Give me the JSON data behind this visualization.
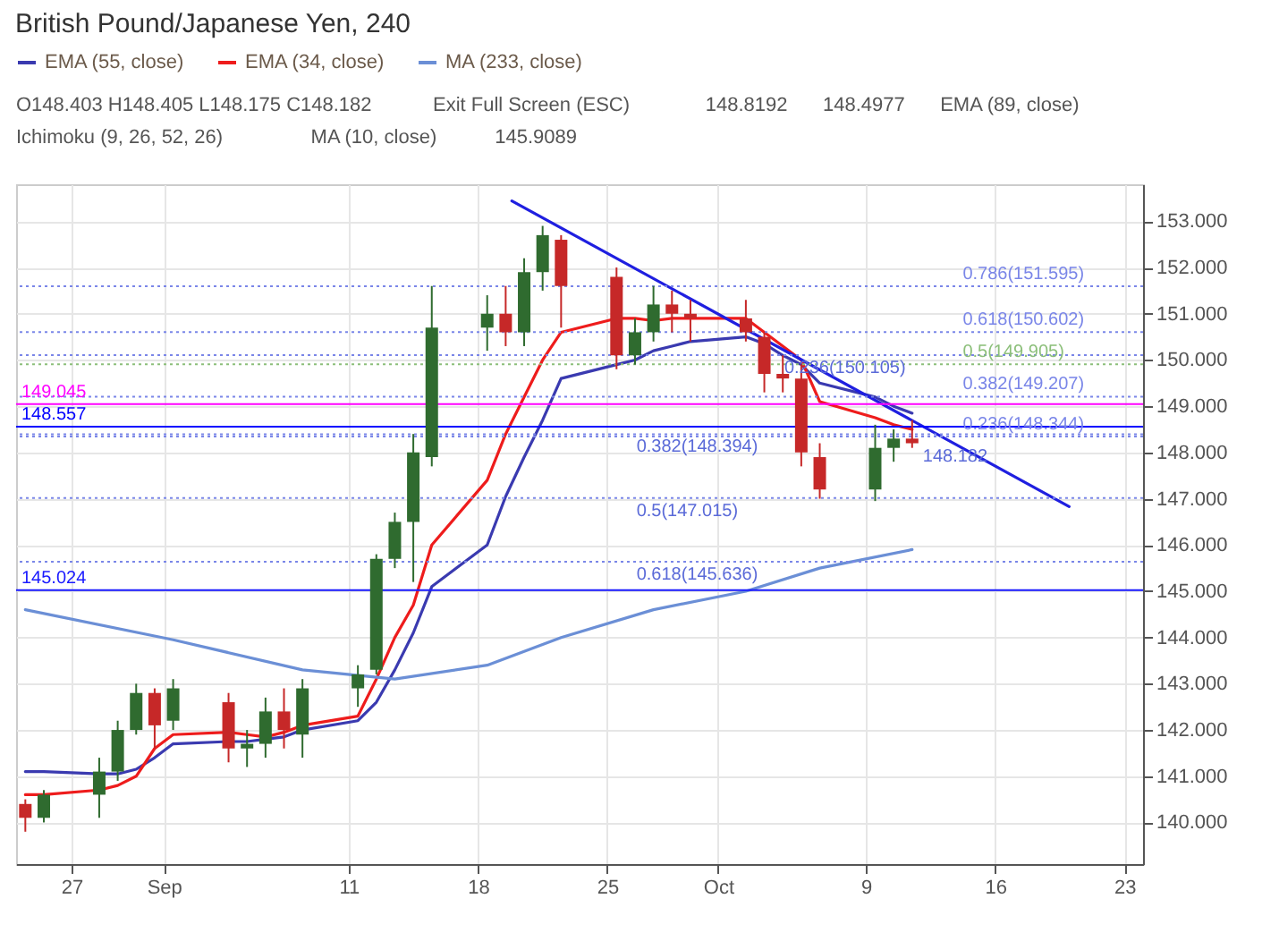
{
  "chart_data": {
    "type": "candlestick",
    "title": "British Pound/Japanese Yen, 240",
    "x": [
      "--08-24T12:00",
      "--08-25T12:00",
      "--08-28T12:00",
      "--08-29T12:00",
      "--08-30T12:00",
      "--08-31T12:00",
      "--09-01T12:00",
      "--09-04T12:00",
      "--09-05T12:00",
      "--09-06T12:00",
      "--09-07T12:00",
      "--09-08T12:00",
      "--09-11T12:00",
      "--09-12T12:00",
      "--09-13T12:00",
      "--09-14T12:00",
      "--09-15T12:00",
      "--09-18T12:00",
      "--09-19T12:00",
      "--09-20T12:00",
      "--09-21T12:00",
      "--09-22T12:00",
      "--09-25T12:00",
      "--09-26T12:00",
      "--09-27T12:00",
      "--09-28T12:00",
      "--09-29T12:00",
      "--10-02T12:00",
      "--10-03T12:00",
      "--10-04T12:00",
      "--10-05T12:00",
      "--10-06T12:00",
      "--10-09T12:00",
      "--10-10T12:00",
      "--10-11T12:00"
    ],
    "ohlc": [
      [
        140.4,
        140.5,
        139.8,
        140.1
      ],
      [
        140.1,
        140.7,
        140.0,
        140.6
      ],
      [
        140.6,
        141.4,
        140.1,
        141.1
      ],
      [
        141.1,
        142.2,
        140.9,
        142.0
      ],
      [
        142.0,
        143.0,
        141.9,
        142.8
      ],
      [
        142.8,
        142.9,
        141.6,
        142.1
      ],
      [
        142.2,
        143.1,
        142.0,
        142.9
      ],
      [
        142.6,
        142.8,
        141.3,
        141.6
      ],
      [
        141.6,
        142.0,
        141.2,
        141.7
      ],
      [
        141.7,
        142.7,
        141.4,
        142.4
      ],
      [
        142.4,
        142.9,
        141.6,
        142.0
      ],
      [
        141.9,
        143.1,
        141.4,
        142.9
      ],
      [
        142.9,
        143.4,
        142.5,
        143.2
      ],
      [
        143.3,
        145.8,
        143.2,
        145.7
      ],
      [
        145.7,
        146.7,
        145.5,
        146.5
      ],
      [
        146.5,
        148.4,
        145.2,
        148.0
      ],
      [
        147.9,
        151.6,
        147.7,
        150.7
      ],
      [
        150.7,
        151.4,
        150.2,
        151.0
      ],
      [
        151.0,
        151.6,
        150.3,
        150.6
      ],
      [
        150.6,
        152.2,
        150.3,
        151.9
      ],
      [
        151.9,
        152.9,
        151.5,
        152.7
      ],
      [
        152.6,
        152.7,
        150.7,
        151.6
      ],
      [
        151.8,
        152.0,
        149.8,
        150.1
      ],
      [
        150.1,
        150.9,
        149.9,
        150.6
      ],
      [
        150.6,
        151.6,
        150.4,
        151.2
      ],
      [
        151.2,
        151.5,
        150.6,
        151.0
      ],
      [
        151.0,
        151.3,
        150.4,
        150.9
      ],
      [
        150.9,
        151.3,
        150.4,
        150.6
      ],
      [
        150.5,
        150.6,
        149.3,
        149.7
      ],
      [
        149.7,
        150.1,
        149.3,
        149.6
      ],
      [
        149.6,
        149.9,
        147.7,
        148.0
      ],
      [
        147.9,
        148.2,
        147.0,
        147.2
      ],
      [
        147.2,
        148.6,
        146.95,
        148.1
      ],
      [
        148.1,
        148.5,
        147.8,
        148.3
      ],
      [
        148.3,
        148.7,
        148.1,
        148.2
      ]
    ],
    "colors": [
      "#c62828",
      "#2f6b2f",
      "#2f6b2f",
      "#2f6b2f",
      "#2f6b2f",
      "#c62828",
      "#2f6b2f",
      "#c62828",
      "#2f6b2f",
      "#2f6b2f",
      "#c62828",
      "#2f6b2f",
      "#2f6b2f",
      "#2f6b2f",
      "#2f6b2f",
      "#2f6b2f",
      "#2f6b2f",
      "#2f6b2f",
      "#c62828",
      "#2f6b2f",
      "#2f6b2f",
      "#c62828",
      "#c62828",
      "#2f6b2f",
      "#2f6b2f",
      "#c62828",
      "#c62828",
      "#c62828",
      "#c62828",
      "#c62828",
      "#c62828",
      "#c62828",
      "#2f6b2f",
      "#2f6b2f",
      "#c62828"
    ],
    "series": [
      {
        "type": "line",
        "name": "EMA (55, close)",
        "color": "#3a3ab0",
        "x": [
          "--08-24T12:00",
          "--08-25T12:00",
          "--08-28T12:00",
          "--08-29T12:00",
          "--08-30T12:00",
          "--08-31T12:00",
          "--09-01T12:00",
          "--09-04T12:00",
          "--09-05T12:00",
          "--09-06T12:00",
          "--09-07T12:00",
          "--09-08T12:00",
          "--09-11T12:00",
          "--09-12T12:00",
          "--09-13T12:00",
          "--09-14T12:00",
          "--09-15T12:00",
          "--09-18T12:00",
          "--09-19T12:00",
          "--09-20T12:00",
          "--09-21T12:00",
          "--09-22T12:00",
          "--09-25T12:00",
          "--09-26T12:00",
          "--09-27T12:00",
          "--09-28T12:00",
          "--09-29T12:00",
          "--10-02T12:00",
          "--10-03T12:00",
          "--10-04T12:00",
          "--10-05T12:00",
          "--10-06T12:00",
          "--10-09T12:00",
          "--10-10T12:00",
          "--10-11T12:00"
        ],
        "values": [
          141.1,
          141.1,
          141.05,
          141.05,
          141.15,
          141.4,
          141.7,
          141.75,
          141.75,
          141.8,
          141.85,
          142.0,
          142.2,
          142.6,
          143.3,
          144.1,
          145.1,
          146.0,
          147.05,
          147.9,
          148.7,
          149.6,
          149.9,
          150.0,
          150.2,
          150.3,
          150.4,
          150.5,
          150.35,
          150.1,
          149.9,
          149.5,
          149.2,
          149.0,
          148.85
        ]
      },
      {
        "type": "line",
        "name": "EMA (34, close)",
        "color": "#ee1c1c",
        "x": [
          "--08-24T12:00",
          "--08-25T12:00",
          "--08-28T12:00",
          "--08-29T12:00",
          "--08-30T12:00",
          "--08-31T12:00",
          "--09-01T12:00",
          "--09-04T12:00",
          "--09-05T12:00",
          "--09-06T12:00",
          "--09-07T12:00",
          "--09-08T12:00",
          "--09-11T12:00",
          "--09-12T12:00",
          "--09-13T12:00",
          "--09-14T12:00",
          "--09-15T12:00",
          "--09-18T12:00",
          "--09-19T12:00",
          "--09-20T12:00",
          "--09-21T12:00",
          "--09-22T12:00",
          "--09-25T12:00",
          "--09-26T12:00",
          "--09-27T12:00",
          "--09-28T12:00",
          "--09-29T12:00",
          "--10-02T12:00",
          "--10-03T12:00",
          "--10-04T12:00",
          "--10-05T12:00",
          "--10-06T12:00",
          "--10-09T12:00",
          "--10-10T12:00",
          "--10-11T12:00"
        ],
        "values": [
          140.6,
          140.6,
          140.7,
          140.8,
          141.0,
          141.6,
          141.9,
          141.95,
          141.9,
          141.85,
          141.95,
          142.1,
          142.3,
          143.1,
          144.0,
          144.7,
          146.0,
          147.4,
          148.4,
          149.2,
          150.0,
          150.6,
          150.9,
          150.9,
          150.85,
          150.9,
          150.9,
          150.9,
          150.6,
          150.3,
          150.0,
          149.1,
          148.75,
          148.6,
          148.5
        ]
      },
      {
        "type": "line",
        "name": "MA (233, close)",
        "color": "#6b8fd6",
        "x": [
          "--08-24T12:00",
          "--09-01T12:00",
          "--09-08T12:00",
          "--09-13T12:00",
          "--09-18T12:00",
          "--09-22T12:00",
          "--09-27T12:00",
          "--10-02T12:00",
          "--10-06T12:00",
          "--10-11T12:00"
        ],
        "values": [
          144.6,
          143.95,
          143.3,
          143.1,
          143.4,
          144.0,
          144.6,
          145.0,
          145.5,
          145.9
        ]
      },
      {
        "type": "line",
        "color": "#1f1fe0",
        "x": [
          "--09-19T20:00",
          "--10-20T00:00"
        ],
        "values": [
          153.44,
          146.83
        ]
      }
    ],
    "xlim": [
      "--08-24",
      "--10-24"
    ],
    "xticks": [
      {
        "value": "--08-27",
        "label": "27"
      },
      {
        "value": "--09-01",
        "label": "Sep"
      },
      {
        "value": "--09-11",
        "label": "11"
      },
      {
        "value": "--09-18",
        "label": "18"
      },
      {
        "value": "--09-25",
        "label": "25"
      },
      {
        "value": "--10-01",
        "label": "Oct"
      },
      {
        "value": "--10-09",
        "label": "9"
      },
      {
        "value": "--10-16",
        "label": "16"
      },
      {
        "value": "--10-23",
        "label": "23"
      }
    ],
    "ylim": [
      139.1,
      153.8
    ],
    "yticks": [
      {
        "value": 140,
        "label": "140.000"
      },
      {
        "value": 141,
        "label": "141.000"
      },
      {
        "value": 142,
        "label": "142.000"
      },
      {
        "value": 143,
        "label": "143.000"
      },
      {
        "value": 144,
        "label": "144.000"
      },
      {
        "value": 145,
        "label": "145.000"
      },
      {
        "value": 146,
        "label": "146.000"
      },
      {
        "value": 147,
        "label": "147.000"
      },
      {
        "value": 148,
        "label": "148.000"
      },
      {
        "value": 149,
        "label": "149.000"
      },
      {
        "value": 150,
        "label": "150.000"
      },
      {
        "value": 151,
        "label": "151.000"
      },
      {
        "value": 152,
        "label": "152.000"
      },
      {
        "value": 153,
        "label": "153.000"
      }
    ],
    "grid": true,
    "legend": "top left",
    "ref_lines": [
      {
        "axis": "y",
        "value": 149.045,
        "label": "149.045",
        "color": "#ff00ff",
        "line_style": "solid"
      },
      {
        "axis": "y",
        "value": 148.557,
        "label": "148.557",
        "color": "#0000ff",
        "line_style": "solid"
      },
      {
        "axis": "y",
        "value": 145.024,
        "label": "145.024",
        "color": "#1a1aff",
        "line_style": "solid"
      },
      {
        "axis": "y",
        "value": 151.595,
        "label": "0.786(151.595)",
        "color": "#7a86e8",
        "line_style": "dotted"
      },
      {
        "axis": "y",
        "value": 150.602,
        "label": "0.618(150.602)",
        "color": "#7a86e8",
        "line_style": "dotted"
      },
      {
        "axis": "y",
        "value": 149.905,
        "label": "0.5(149.905)",
        "color": "#8cbf7a",
        "line_style": "dotted"
      },
      {
        "axis": "y",
        "value": 149.207,
        "label": "0.382(149.207)",
        "color": "#7a86e8",
        "line_style": "dotted"
      },
      {
        "axis": "y",
        "value": 148.344,
        "label": "0.236(148.344)",
        "color": "#7a86e8",
        "line_style": "dotted"
      },
      {
        "axis": "y",
        "value": 150.105,
        "color": "#7a86e8",
        "line_style": "dotted"
      },
      {
        "axis": "y",
        "value": 148.394,
        "color": "#7a86e8",
        "line_style": "dotted"
      },
      {
        "axis": "y",
        "value": 147.015,
        "color": "#7a86e8",
        "line_style": "dotted"
      },
      {
        "axis": "y",
        "value": 145.636,
        "color": "#7a86e8",
        "line_style": "dotted"
      }
    ],
    "annotations": [
      "O148.403 H148.405 L148.175 C148.182",
      "Exit Full Screen (ESC)",
      "148.8192",
      "148.4977",
      "EMA (89, close)",
      "Ichimoku (9, 26, 52, 26)",
      "MA (10, close)",
      "145.9089",
      {
        "text": "0.236(150.105)",
        "x": "--10-04T00:00",
        "y": 150.105
      },
      {
        "text": "0.382(148.394)",
        "x": "--09-26T00:00",
        "y": 148.394
      },
      {
        "text": "0.5(147.015)",
        "x": "--09-26T00:00",
        "y": 147.015
      },
      {
        "text": "0.618(145.636)",
        "x": "--09-26T00:00",
        "y": 145.636
      },
      {
        "text": "148.182",
        "x": "--10-11T12:00",
        "y": 148.182
      }
    ]
  }
}
